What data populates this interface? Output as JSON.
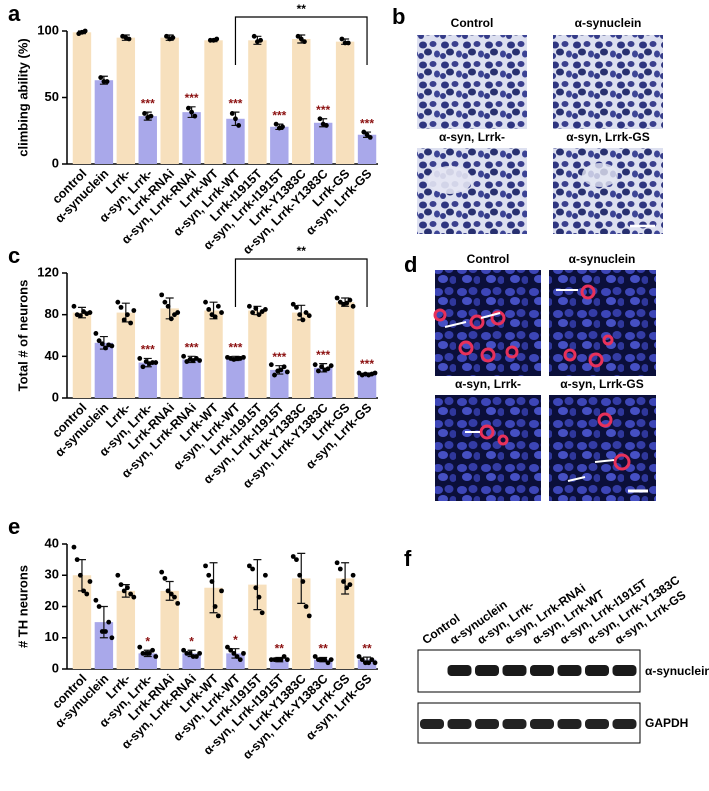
{
  "chart_data": [
    {
      "type": "bar",
      "panel": "a",
      "ylabel": "climbing ability (%)",
      "categories": [
        "control",
        "α-synuclein",
        "Lrrk-",
        "α-syn, Lrrk-",
        "Lrrk-RNAi",
        "α-syn, Lrrk-RNAi",
        "Lrrk-WT",
        "α-syn, Lrrk-WT",
        "Lrrk-I1915T",
        "α-syn, Lrrk-I1915T",
        "Lrrk-Y1383C",
        "α-syn, Lrrk-Y1383C",
        "Lrrk-GS",
        "α-syn, Lrrk-GS"
      ],
      "values": [
        99,
        63,
        95,
        36,
        95,
        39,
        93,
        34,
        93,
        28,
        94,
        31,
        92,
        22
      ],
      "errors": [
        1,
        3,
        2,
        3,
        2,
        4,
        1,
        5,
        3,
        2,
        3,
        3,
        2,
        2
      ],
      "points": [
        [
          98,
          99,
          100
        ],
        [
          65,
          62,
          62
        ],
        [
          96,
          95,
          94
        ],
        [
          38,
          35,
          36
        ],
        [
          96,
          94,
          95
        ],
        [
          42,
          39,
          36
        ],
        [
          93,
          93,
          94
        ],
        [
          38,
          34,
          29
        ],
        [
          96,
          92,
          93
        ],
        [
          30,
          27,
          28
        ],
        [
          96,
          94,
          92
        ],
        [
          34,
          30,
          29
        ],
        [
          94,
          91,
          91
        ],
        [
          24,
          22,
          20
        ]
      ],
      "colors": [
        "#f7e0bd",
        "#a9a8ea"
      ],
      "ylim": [
        0,
        100
      ],
      "yticks": [
        0,
        50,
        100
      ],
      "annotations": [
        {
          "index": 3,
          "text": "***"
        },
        {
          "index": 5,
          "text": "***"
        },
        {
          "index": 7,
          "text": "***"
        },
        {
          "index": 9,
          "text": "***"
        },
        {
          "index": 11,
          "text": "***"
        },
        {
          "index": 13,
          "text": "***"
        }
      ],
      "bracket": {
        "from": 7,
        "to": 13,
        "text": "**"
      }
    },
    {
      "type": "bar",
      "panel": "c",
      "ylabel": "Total # of neurons",
      "categories": [
        "control",
        "α-synuclein",
        "Lrrk-",
        "α-syn, Lrrk-",
        "Lrrk-RNAi",
        "α-syn, Lrrk-RNAi",
        "Lrrk-WT",
        "α-syn, Lrrk-WT",
        "Lrrk-I1915T",
        "α-syn, Lrrk-I1915T",
        "Lrrk-Y1383C",
        "α-syn, Lrrk-Y1383C",
        "Lrrk-GS",
        "α-syn, Lrrk-GS"
      ],
      "values": [
        82,
        53,
        82,
        34,
        86,
        37,
        84,
        38,
        84,
        27,
        82,
        29,
        92,
        23
      ],
      "errors": [
        5,
        6,
        9,
        4,
        10,
        3,
        8,
        2,
        4,
        4,
        7,
        4,
        4,
        1
      ],
      "points": [
        [
          88,
          80,
          79,
          83,
          81,
          82
        ],
        [
          62,
          55,
          52,
          48,
          51,
          50
        ],
        [
          92,
          87,
          75,
          80,
          72,
          84
        ],
        [
          38,
          30,
          35,
          33,
          34,
          34
        ],
        [
          99,
          92,
          88,
          76,
          80,
          82
        ],
        [
          40,
          35,
          37,
          36,
          38,
          36
        ],
        [
          92,
          85,
          80,
          78,
          88,
          82
        ],
        [
          39,
          38,
          37,
          38,
          38,
          39
        ],
        [
          88,
          82,
          86,
          80,
          83,
          85
        ],
        [
          32,
          22,
          26,
          27,
          30,
          25
        ],
        [
          90,
          87,
          80,
          75,
          82,
          79
        ],
        [
          32,
          26,
          30,
          27,
          28,
          31
        ],
        [
          96,
          92,
          90,
          91,
          94,
          88
        ],
        [
          24,
          22,
          23,
          22,
          23,
          24
        ]
      ],
      "colors": [
        "#f7e0bd",
        "#a9a8ea"
      ],
      "ylim": [
        0,
        120
      ],
      "yticks": [
        0,
        40,
        80,
        120
      ],
      "annotations": [
        {
          "index": 3,
          "text": "***"
        },
        {
          "index": 5,
          "text": "***"
        },
        {
          "index": 7,
          "text": "***"
        },
        {
          "index": 9,
          "text": "***"
        },
        {
          "index": 11,
          "text": "***"
        },
        {
          "index": 13,
          "text": "***"
        }
      ],
      "bracket": {
        "from": 7,
        "to": 13,
        "text": "**"
      }
    },
    {
      "type": "bar",
      "panel": "e",
      "ylabel": "# TH neurons",
      "categories": [
        "control",
        "α-synuclein",
        "Lrrk-",
        "α-syn, Lrrk-",
        "Lrrk-RNAi",
        "α-syn, Lrrk-RNAi",
        "Lrrk-WT",
        "α-syn, Lrrk-WT",
        "Lrrk-I1915T",
        "α-syn, Lrrk-I1915T",
        "Lrrk-Y1383C",
        "α-syn, Lrrk-Y1383C",
        "Lrrk-GS",
        "α-syn, Lrrk-GS"
      ],
      "values": [
        30,
        15,
        25,
        5,
        25,
        5,
        26,
        5,
        27,
        3,
        29,
        3,
        29,
        3
      ],
      "errors": [
        5,
        5,
        2,
        1,
        3,
        1,
        8,
        1.5,
        8,
        0.7,
        8,
        0.7,
        5,
        0.8
      ],
      "points": [
        [
          39,
          35,
          30,
          25,
          24,
          28
        ],
        [
          22,
          20,
          12,
          12,
          15,
          10
        ],
        [
          30,
          27,
          25,
          26,
          24,
          23
        ],
        [
          7,
          5,
          5,
          5,
          6,
          4
        ],
        [
          31,
          29,
          25,
          24,
          23,
          21
        ],
        [
          6,
          5,
          5,
          4,
          4,
          5
        ],
        [
          33,
          30,
          28,
          20,
          17,
          25
        ],
        [
          7,
          6,
          5,
          4,
          3,
          5
        ],
        [
          33,
          32,
          26,
          23,
          18,
          30
        ],
        [
          3,
          3,
          3,
          3,
          4,
          3
        ],
        [
          36,
          35,
          30,
          28,
          20,
          17
        ],
        [
          4,
          3,
          3,
          3,
          2,
          3
        ],
        [
          34,
          32,
          28,
          26,
          27,
          30
        ],
        [
          4,
          3,
          2,
          2,
          3,
          2
        ]
      ],
      "colors": [
        "#f7e0bd",
        "#a9a8ea"
      ],
      "ylim": [
        0,
        40
      ],
      "yticks": [
        0,
        10,
        20,
        30,
        40
      ],
      "annotations": [
        {
          "index": 3,
          "text": "*"
        },
        {
          "index": 5,
          "text": "*"
        },
        {
          "index": 7,
          "text": "*"
        },
        {
          "index": 9,
          "text": "**"
        },
        {
          "index": 11,
          "text": "**"
        },
        {
          "index": 13,
          "text": "**"
        }
      ]
    }
  ],
  "panels": {
    "b": {
      "letter": "b",
      "labels": [
        "Control",
        "α-synuclein",
        "α-syn, Lrrk-",
        "α-syn, Lrrk-GS"
      ]
    },
    "d": {
      "letter": "d",
      "labels": [
        "Control",
        "α-synuclein",
        "α-syn, Lrrk-",
        "α-syn, Lrrk-GS"
      ]
    },
    "f": {
      "letter": "f",
      "lanes": [
        "Control",
        "α-synuclein",
        "α-syn, Lrrk-",
        "α-syn, Lrrk-RNAi",
        "α-syn, Lrrk-WT",
        "α-syn, Lrrk-I1915T",
        "α-syn, Lrrk-Y1383C",
        "α-syn, Lrrk-GS"
      ],
      "bands": [
        "α-synuclein",
        "GAPDH"
      ]
    }
  }
}
